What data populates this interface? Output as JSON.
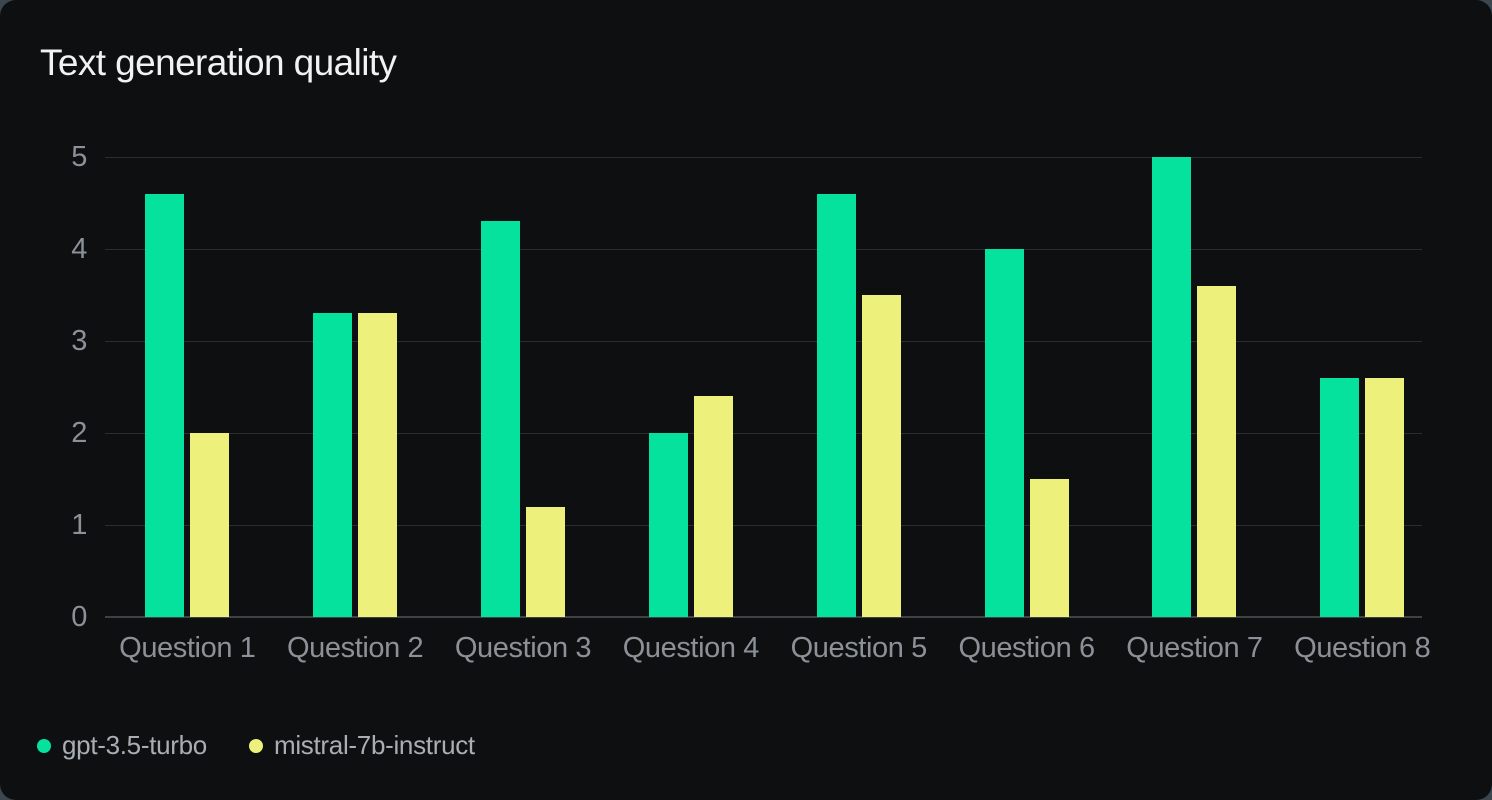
{
  "chart": {
    "title": "Text generation quality"
  },
  "colors": {
    "page_bg": "#3c464f",
    "card_bg": "#0e0f10",
    "grid": "#2b2e30",
    "zero_line": "#3e4245",
    "axis_text": "#8b9197",
    "title_text": "#f1f2f3",
    "legend_text": "#a8aeb4",
    "series_gpt": "#05e29d",
    "series_mistral": "#eef07c"
  },
  "chart_data": {
    "type": "bar",
    "title": "Text generation quality",
    "categories": [
      "Question 1",
      "Question 2",
      "Question 3",
      "Question 4",
      "Question 5",
      "Question 6",
      "Question 7",
      "Question 8"
    ],
    "series": [
      {
        "name": "gpt-3.5-turbo",
        "color": "#05e29d",
        "values": [
          4.6,
          3.3,
          4.3,
          2.0,
          4.6,
          4.0,
          5.0,
          2.6
        ]
      },
      {
        "name": "mistral-7b-instruct",
        "color": "#eef07c",
        "values": [
          2.0,
          3.3,
          1.2,
          2.4,
          3.5,
          1.5,
          3.6,
          2.6
        ]
      }
    ],
    "xlabel": "",
    "ylabel": "",
    "ylim": [
      0,
      5
    ],
    "yticks": [
      0,
      1,
      2,
      3,
      4,
      5
    ],
    "grid": true,
    "legend_position": "bottom-left"
  }
}
